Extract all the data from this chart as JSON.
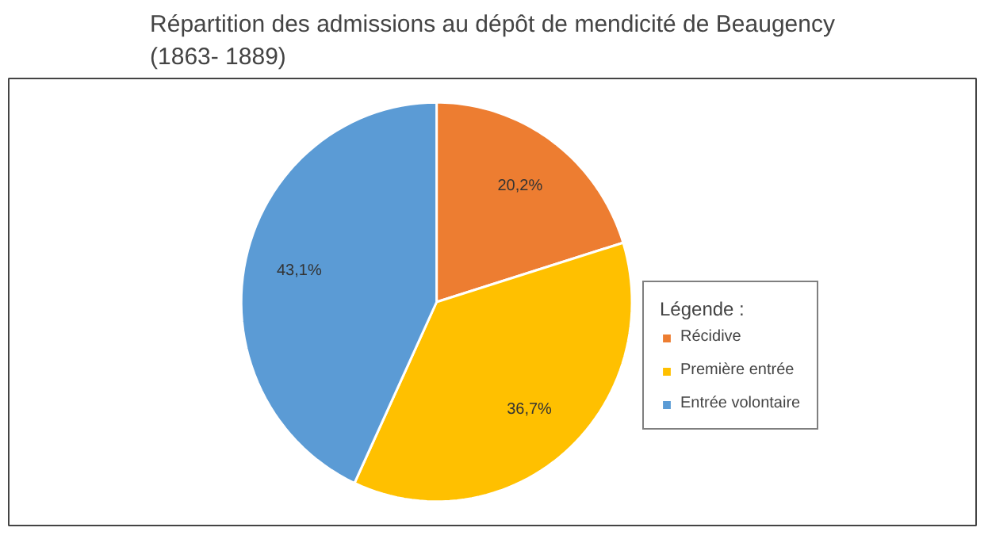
{
  "chart_data": {
    "type": "pie",
    "title": "Répartition des admissions au dépôt de mendicité de Beaugency\n(1863- 1889)",
    "categories": [
      "Récidive",
      "Première entrée",
      "Entrée volontaire"
    ],
    "values": [
      20.2,
      36.7,
      43.1
    ],
    "value_labels": [
      "20,2%",
      "36,7%",
      "43,1%"
    ],
    "colors": [
      "#ed7d31",
      "#ffc000",
      "#5b9bd5"
    ],
    "legend_title": "Légende :",
    "legend": "right"
  }
}
